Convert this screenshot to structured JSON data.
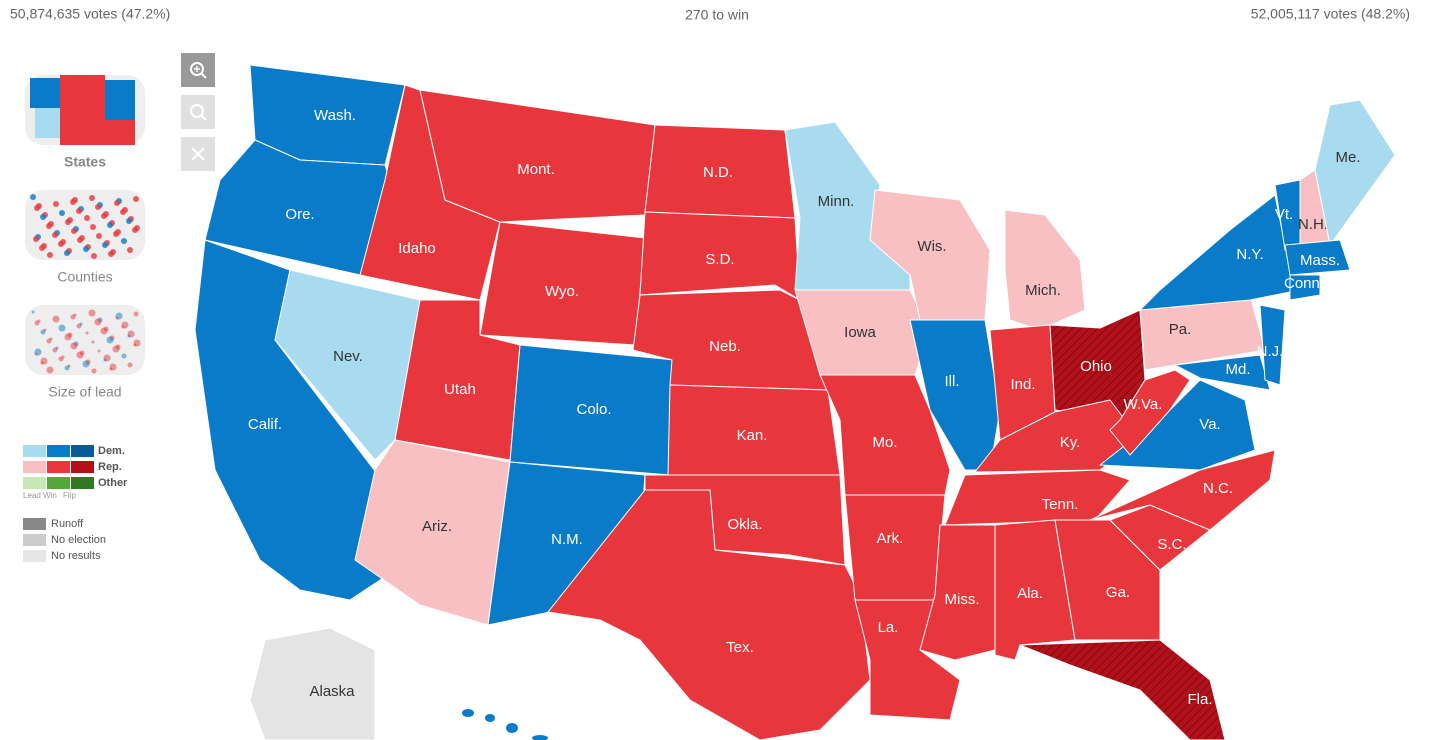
{
  "header": {
    "left_votes": "50,874,635 votes (47.2%)",
    "center": "270 to win",
    "right_votes": "52,005,117 votes (48.2%)"
  },
  "sidebar": {
    "views": [
      "States",
      "Counties",
      "Size of lead"
    ],
    "legend": {
      "rows": [
        {
          "label": "Dem.",
          "colors": [
            "#a8dbef",
            "#0a7bc8",
            "#0a5a96"
          ]
        },
        {
          "label": "Rep.",
          "colors": [
            "#f8c0c3",
            "#e8363d",
            "#b3101a"
          ]
        },
        {
          "label": "Other",
          "colors": [
            "#c9e6b5",
            "#53a83a",
            "#2f7a20"
          ]
        }
      ],
      "columns": [
        "Lead",
        "Win",
        "Flip"
      ],
      "extra": [
        {
          "label": "Runoff",
          "color": "#888888"
        },
        {
          "label": "No election",
          "color": "#cccccc"
        },
        {
          "label": "No results",
          "color": "#e6e6e6"
        }
      ]
    }
  },
  "map": {
    "states": [
      {
        "label": "Wash.",
        "color": "#0a7bc8"
      },
      {
        "label": "Ore.",
        "color": "#0a7bc8"
      },
      {
        "label": "Calif.",
        "color": "#0a7bc8"
      },
      {
        "label": "Nev.",
        "color": "#a8dbef"
      },
      {
        "label": "Idaho",
        "color": "#e8363d"
      },
      {
        "label": "Mont.",
        "color": "#e8363d"
      },
      {
        "label": "Wyo.",
        "color": "#e8363d"
      },
      {
        "label": "Utah",
        "color": "#e8363d"
      },
      {
        "label": "Colo.",
        "color": "#0a7bc8"
      },
      {
        "label": "Ariz.",
        "color": "#f8c0c3"
      },
      {
        "label": "N.M.",
        "color": "#0a7bc8"
      },
      {
        "label": "N.D.",
        "color": "#e8363d"
      },
      {
        "label": "S.D.",
        "color": "#e8363d"
      },
      {
        "label": "Neb.",
        "color": "#e8363d"
      },
      {
        "label": "Kan.",
        "color": "#e8363d"
      },
      {
        "label": "Okla.",
        "color": "#e8363d"
      },
      {
        "label": "Tex.",
        "color": "#e8363d"
      },
      {
        "label": "Minn.",
        "color": "#a8dbef"
      },
      {
        "label": "Iowa",
        "color": "#f8c0c3"
      },
      {
        "label": "Mo.",
        "color": "#e8363d"
      },
      {
        "label": "Ark.",
        "color": "#e8363d"
      },
      {
        "label": "La.",
        "color": "#e8363d"
      },
      {
        "label": "Wis.",
        "color": "#f8c0c3"
      },
      {
        "label": "Ill.",
        "color": "#0a7bc8"
      },
      {
        "label": "Mich.",
        "color": "#f8c0c3"
      },
      {
        "label": "Ind.",
        "color": "#e8363d"
      },
      {
        "label": "Ohio",
        "color": "#b3101a",
        "flip": true
      },
      {
        "label": "Ky.",
        "color": "#e8363d"
      },
      {
        "label": "Tenn.",
        "color": "#e8363d"
      },
      {
        "label": "Miss.",
        "color": "#e8363d"
      },
      {
        "label": "Ala.",
        "color": "#e8363d"
      },
      {
        "label": "Ga.",
        "color": "#e8363d"
      },
      {
        "label": "Fla.",
        "color": "#b3101a",
        "flip": true
      },
      {
        "label": "S.C.",
        "color": "#e8363d"
      },
      {
        "label": "N.C.",
        "color": "#e8363d"
      },
      {
        "label": "Va.",
        "color": "#0a7bc8"
      },
      {
        "label": "W.Va.",
        "color": "#e8363d"
      },
      {
        "label": "Md.",
        "color": "#0a7bc8"
      },
      {
        "label": "Pa.",
        "color": "#f8c0c3"
      },
      {
        "label": "N.J.",
        "color": "#0a7bc8"
      },
      {
        "label": "N.Y.",
        "color": "#0a7bc8"
      },
      {
        "label": "Vt.",
        "color": "#0a7bc8"
      },
      {
        "label": "N.H.",
        "color": "#f8c0c3"
      },
      {
        "label": "Me.",
        "color": "#a8dbef"
      },
      {
        "label": "Mass.",
        "color": "#0a7bc8"
      },
      {
        "label": "Conn.",
        "color": "#0a7bc8"
      }
    ],
    "alaska": {
      "label": "Alaska",
      "color": "#e4e4e4"
    },
    "hawaii_color": "#0a7bc8"
  }
}
